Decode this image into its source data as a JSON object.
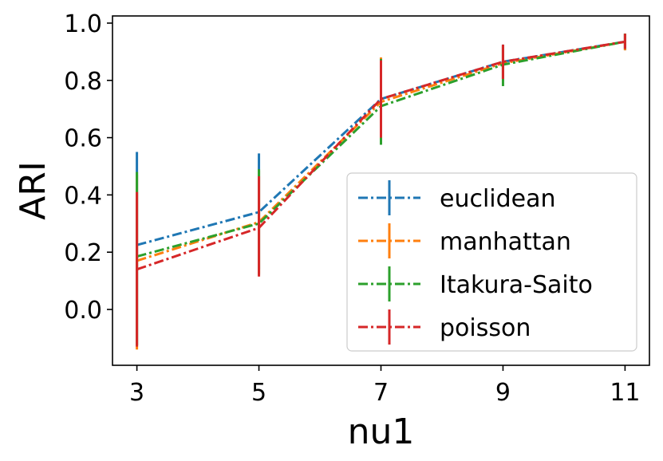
{
  "chart_data": {
    "type": "line",
    "title": "",
    "xlabel": "nu1",
    "ylabel": "ARI",
    "x": [
      3,
      5,
      7,
      9,
      11
    ],
    "x_tick_labels": [
      "3",
      "5",
      "7",
      "9",
      "11"
    ],
    "y_ticks": [
      0.0,
      0.2,
      0.4,
      0.6,
      0.8,
      1.0
    ],
    "y_tick_labels": [
      "0.0",
      "0.2",
      "0.4",
      "0.6",
      "0.8",
      "1.0"
    ],
    "xlim": [
      2.6,
      11.4
    ],
    "ylim": [
      -0.195,
      1.025
    ],
    "grid": false,
    "legend_position": "lower-right",
    "series": [
      {
        "name": "euclidean",
        "color": "#1f77b4",
        "values": [
          0.225,
          0.34,
          0.735,
          0.865,
          0.935
        ],
        "err_low": [
          -0.125,
          0.14,
          0.595,
          0.805,
          0.905
        ],
        "err_high": [
          0.55,
          0.545,
          0.875,
          0.925,
          0.963
        ]
      },
      {
        "name": "manhattan",
        "color": "#ff7f0e",
        "values": [
          0.17,
          0.305,
          0.725,
          0.86,
          0.935
        ],
        "err_low": [
          -0.14,
          0.125,
          0.585,
          0.8,
          0.905
        ],
        "err_high": [
          0.47,
          0.485,
          0.88,
          0.92,
          0.963
        ]
      },
      {
        "name": "Itakura-Saito",
        "color": "#2ca02c",
        "values": [
          0.185,
          0.3,
          0.71,
          0.855,
          0.935
        ],
        "err_low": [
          -0.125,
          0.12,
          0.575,
          0.78,
          0.91
        ],
        "err_high": [
          0.48,
          0.49,
          0.875,
          0.92,
          0.963
        ]
      },
      {
        "name": "poisson",
        "color": "#d62728",
        "values": [
          0.14,
          0.285,
          0.735,
          0.865,
          0.935
        ],
        "err_low": [
          -0.13,
          0.115,
          0.6,
          0.805,
          0.91
        ],
        "err_high": [
          0.41,
          0.465,
          0.87,
          0.925,
          0.963
        ]
      }
    ]
  }
}
